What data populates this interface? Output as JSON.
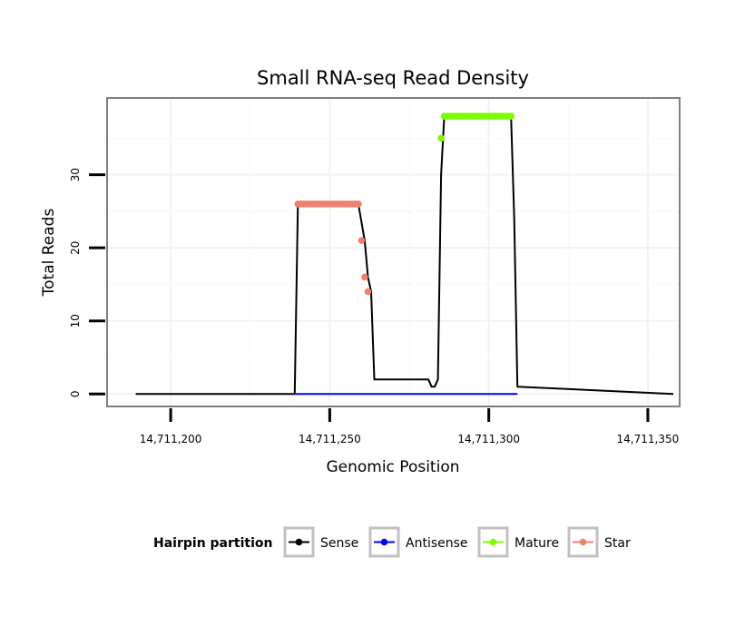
{
  "chart_data": {
    "type": "line",
    "title": "Small RNA-seq Read Density",
    "xlabel": "Genomic Position",
    "ylabel": "Total Reads",
    "xlim": [
      14711180,
      14711360
    ],
    "ylim": [
      -1.7,
      40.5
    ],
    "x_ticks": [
      14711200,
      14711250,
      14711300,
      14711350
    ],
    "x_tick_labels": [
      "14,711,200",
      "14,711,250",
      "14,711,300",
      "14,711,350"
    ],
    "y_ticks": [
      0,
      10,
      20,
      30
    ],
    "y_tick_labels": [
      "0",
      "10",
      "20",
      "30"
    ],
    "grid": true,
    "legend": {
      "title": "Hairpin partition",
      "position": "bottom",
      "entries": [
        {
          "label": "Sense",
          "color": "#000000"
        },
        {
          "label": "Antisense",
          "color": "#0000ff"
        },
        {
          "label": "Mature",
          "color": "#7cfc00"
        },
        {
          "label": "Star",
          "color": "#f08070"
        }
      ]
    },
    "series": [
      {
        "name": "Sense",
        "color": "#000000",
        "x": [
          14711189,
          14711239,
          14711240,
          14711259,
          14711261,
          14711262,
          14711263,
          14711264,
          14711281,
          14711282,
          14711283,
          14711284,
          14711285,
          14711286,
          14711287,
          14711306,
          14711307,
          14711308,
          14711309,
          14711358
        ],
        "y": [
          0,
          0,
          26,
          26,
          21,
          16,
          14,
          2,
          2,
          1,
          1,
          2,
          30,
          38,
          38,
          38,
          38,
          24,
          1,
          0
        ]
      },
      {
        "name": "Antisense",
        "color": "#0000ff",
        "x": [
          14711239,
          14711309
        ],
        "y": [
          0,
          0
        ]
      }
    ],
    "markers": [
      {
        "name": "Star",
        "color": "#f08070",
        "x": [
          14711240,
          14711241,
          14711242,
          14711243,
          14711244,
          14711245,
          14711246,
          14711247,
          14711248,
          14711249,
          14711250,
          14711251,
          14711252,
          14711253,
          14711254,
          14711255,
          14711256,
          14711257,
          14711258,
          14711259,
          14711260,
          14711261,
          14711262
        ],
        "y": [
          26,
          26,
          26,
          26,
          26,
          26,
          26,
          26,
          26,
          26,
          26,
          26,
          26,
          26,
          26,
          26,
          26,
          26,
          26,
          26,
          21,
          16,
          14
        ]
      },
      {
        "name": "Mature",
        "color": "#7cfc00",
        "x": [
          14711285,
          14711286,
          14711287,
          14711288,
          14711289,
          14711290,
          14711291,
          14711292,
          14711293,
          14711294,
          14711295,
          14711296,
          14711297,
          14711298,
          14711299,
          14711300,
          14711301,
          14711302,
          14711303,
          14711304,
          14711305,
          14711306,
          14711307
        ],
        "y": [
          35,
          38,
          38,
          38,
          38,
          38,
          38,
          38,
          38,
          38,
          38,
          38,
          38,
          38,
          38,
          38,
          38,
          38,
          38,
          38,
          38,
          38,
          38
        ]
      }
    ]
  }
}
